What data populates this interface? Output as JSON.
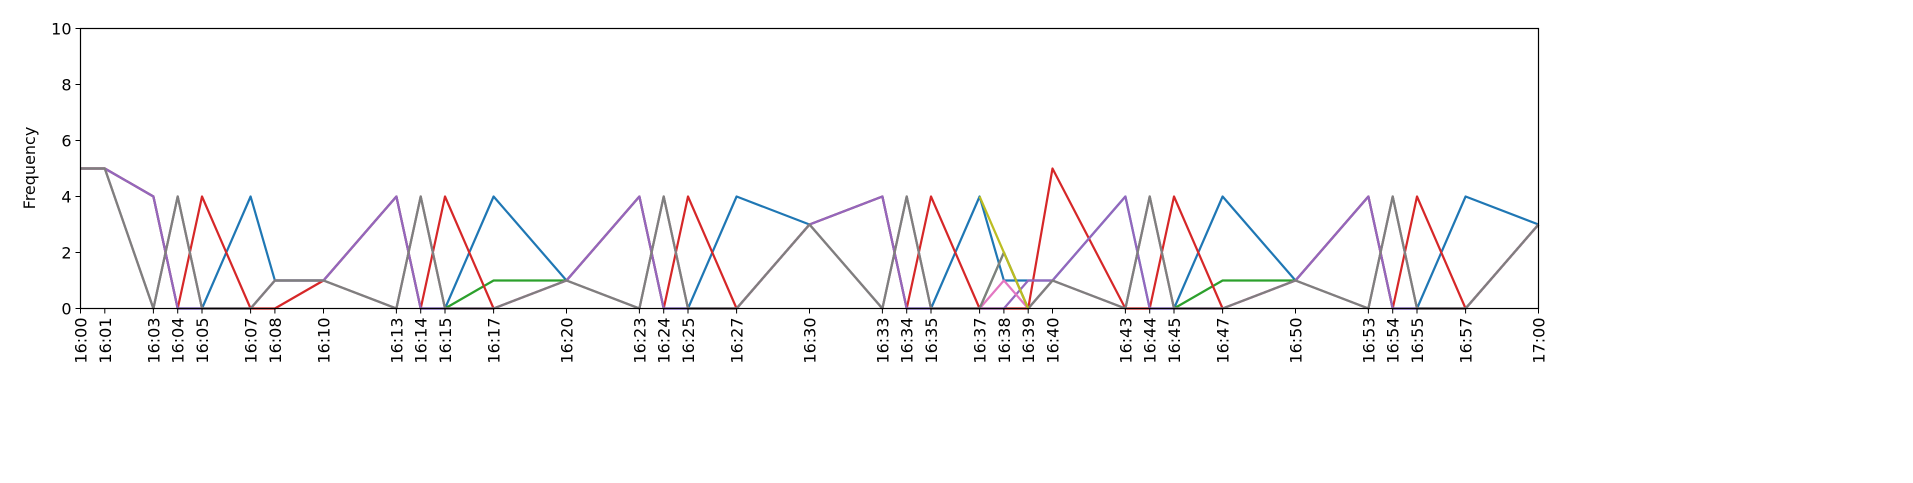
{
  "chart_data": {
    "type": "line",
    "title": "",
    "xlabel": "",
    "ylabel": "Frequency",
    "ylim": [
      0,
      10
    ],
    "yticks": [
      0,
      2,
      4,
      6,
      8,
      10
    ],
    "grid": false,
    "x_minutes": [
      0,
      1,
      3,
      4,
      5,
      7,
      8,
      10,
      13,
      14,
      15,
      17,
      20,
      23,
      24,
      25,
      27,
      30,
      33,
      34,
      35,
      37,
      38,
      39,
      40,
      43,
      44,
      45,
      47,
      50,
      53,
      54,
      55,
      57,
      60
    ],
    "x": [
      "16:00",
      "16:01",
      "16:03",
      "16:04",
      "16:05",
      "16:07",
      "16:08",
      "16:10",
      "16:13",
      "16:14",
      "16:15",
      "16:17",
      "16:20",
      "16:23",
      "16:24",
      "16:25",
      "16:27",
      "16:30",
      "16:33",
      "16:34",
      "16:35",
      "16:37",
      "16:38",
      "16:39",
      "16:40",
      "16:43",
      "16:44",
      "16:45",
      "16:47",
      "16:50",
      "16:53",
      "16:54",
      "16:55",
      "16:57",
      "17:00"
    ],
    "series": [
      {
        "name": "blue",
        "color": "#1f77b4",
        "values": [
          5,
          5,
          4,
          0,
          0,
          4,
          1,
          1,
          4,
          0,
          0,
          4,
          1,
          4,
          0,
          0,
          4,
          3,
          4,
          0,
          0,
          4,
          1,
          1,
          1,
          4,
          0,
          0,
          4,
          1,
          4,
          0,
          0,
          4,
          3
        ]
      },
      {
        "name": "green",
        "color": "#2ca02c",
        "values": [
          5,
          5,
          0,
          4,
          0,
          0,
          1,
          1,
          0,
          4,
          0,
          1,
          1,
          0,
          4,
          0,
          0,
          3,
          0,
          4,
          0,
          0,
          2,
          0,
          1,
          0,
          4,
          0,
          1,
          1,
          0,
          4,
          0,
          0,
          3
        ]
      },
      {
        "name": "red",
        "color": "#d62728",
        "values": [
          5,
          5,
          4,
          0,
          4,
          0,
          0,
          1,
          4,
          0,
          4,
          0,
          1,
          4,
          0,
          4,
          0,
          3,
          4,
          0,
          4,
          0,
          0,
          0,
          5,
          0,
          0,
          4,
          0,
          1,
          4,
          0,
          4,
          0,
          3
        ]
      },
      {
        "name": "purple",
        "color": "#9467bd",
        "values": [
          5,
          5,
          4,
          0,
          0,
          0,
          1,
          1,
          4,
          0,
          0,
          0,
          1,
          4,
          0,
          0,
          0,
          3,
          4,
          0,
          0,
          0,
          0,
          1,
          1,
          4,
          0,
          0,
          0,
          1,
          4,
          0,
          0,
          0,
          3
        ]
      },
      {
        "name": "pink",
        "color": "#e377c2",
        "values": [
          5,
          5,
          0,
          4,
          0,
          0,
          1,
          1,
          0,
          4,
          0,
          0,
          1,
          0,
          4,
          0,
          0,
          3,
          0,
          4,
          0,
          0,
          1,
          0,
          1,
          0,
          4,
          0,
          0,
          1,
          0,
          4,
          0,
          0,
          3
        ]
      },
      {
        "name": "gray",
        "color": "#7f7f7f",
        "values": [
          5,
          5,
          0,
          4,
          0,
          0,
          1,
          1,
          0,
          4,
          0,
          0,
          1,
          0,
          4,
          0,
          0,
          3,
          0,
          4,
          0,
          0,
          2,
          0,
          1,
          0,
          4,
          0,
          0,
          1,
          0,
          4,
          0,
          0,
          3
        ]
      },
      {
        "name": "olive",
        "color": "#bcbd22",
        "values": [
          null,
          null,
          null,
          null,
          null,
          null,
          null,
          null,
          null,
          null,
          null,
          null,
          null,
          null,
          null,
          null,
          null,
          null,
          null,
          null,
          null,
          4,
          2,
          0,
          null,
          null,
          null,
          null,
          null,
          null,
          null,
          null,
          null,
          null,
          null
        ]
      }
    ]
  }
}
